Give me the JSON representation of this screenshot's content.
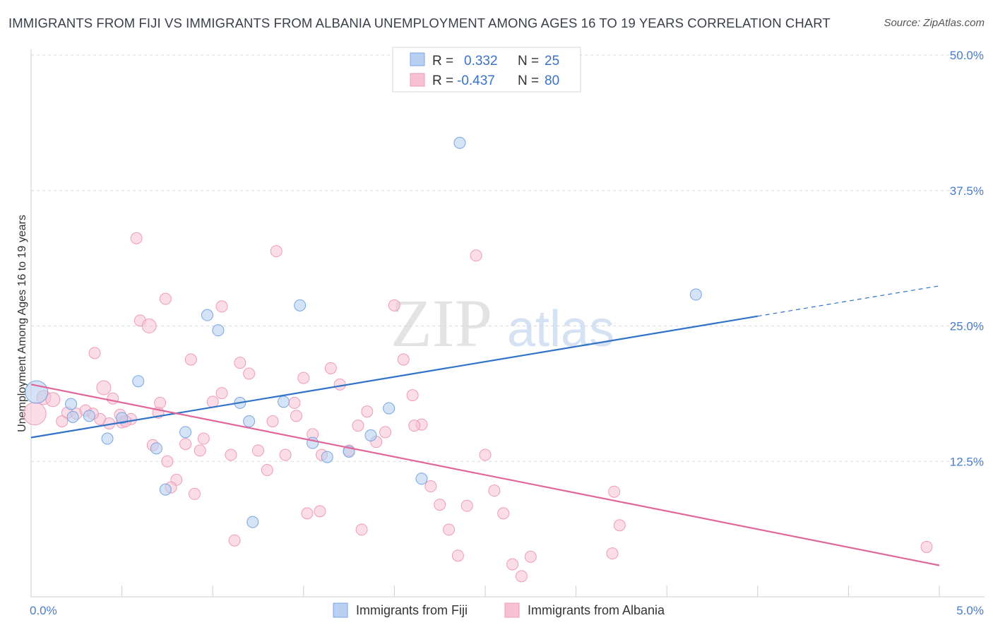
{
  "title": "IMMIGRANTS FROM FIJI VS IMMIGRANTS FROM ALBANIA UNEMPLOYMENT AMONG AGES 16 TO 19 YEARS CORRELATION CHART",
  "source": "Source: ZipAtlas.com",
  "watermark": {
    "zip": "ZIP",
    "atlas": "atlas"
  },
  "legend": {
    "fiji": {
      "r_label": "R =",
      "r_value": "0.332",
      "n_label": "N =",
      "n_value": "25"
    },
    "albania": {
      "r_label": "R =",
      "r_value": "-0.437",
      "n_label": "N =",
      "n_value": "80"
    }
  },
  "colors": {
    "fiji_fill": "#b9d0f2",
    "fiji_stroke": "#7aa6e0",
    "fiji_line": "#2f72c8",
    "albania_fill": "#f7c1d3",
    "albania_stroke": "#ee9bb8",
    "albania_line": "#e0679a",
    "tick_text": "#4a7cc9",
    "grid": "#d8d8d8"
  },
  "chart_data": {
    "type": "scatter",
    "title": "IMMIGRANTS FROM FIJI VS IMMIGRANTS FROM ALBANIA UNEMPLOYMENT AMONG AGES 16 TO 19 YEARS CORRELATION CHART",
    "xlabel": "",
    "ylabel": "Unemployment Among Ages 16 to 19 years",
    "xlim": [
      0,
      5
    ],
    "ylim": [
      0,
      50
    ],
    "x_tick_labels": [
      {
        "value": 0,
        "label": "0.0%"
      },
      {
        "value": 5,
        "label": "5.0%"
      }
    ],
    "y_tick_labels": [
      {
        "value": 12.5,
        "label": "12.5%"
      },
      {
        "value": 25,
        "label": "25.0%"
      },
      {
        "value": 37.5,
        "label": "37.5%"
      },
      {
        "value": 50,
        "label": "50.0%"
      }
    ],
    "grid": true,
    "legend_position": "top-center",
    "series": [
      {
        "name": "Immigrants from Fiji",
        "r": 0.332,
        "n": 25,
        "trend": {
          "x": [
            0,
            4.0
          ],
          "y": [
            14.7,
            25.9
          ],
          "dashed_to": [
            5.0,
            28.7
          ]
        },
        "points": [
          [
            0.03,
            18.9,
            16
          ],
          [
            0.22,
            17.8,
            8
          ],
          [
            0.32,
            16.7,
            8
          ],
          [
            0.42,
            14.6,
            8
          ],
          [
            0.5,
            16.5,
            8
          ],
          [
            0.59,
            19.9,
            8
          ],
          [
            0.69,
            13.7,
            8
          ],
          [
            0.74,
            9.9,
            8
          ],
          [
            0.85,
            15.2,
            8
          ],
          [
            0.97,
            26.0,
            8
          ],
          [
            1.03,
            24.6,
            8
          ],
          [
            1.15,
            17.9,
            8
          ],
          [
            1.2,
            16.2,
            8
          ],
          [
            1.39,
            18.0,
            8
          ],
          [
            1.48,
            26.9,
            8
          ],
          [
            1.55,
            14.2,
            8
          ],
          [
            1.63,
            12.9,
            8
          ],
          [
            1.75,
            13.4,
            8
          ],
          [
            1.87,
            14.9,
            8
          ],
          [
            1.97,
            17.4,
            8
          ],
          [
            2.15,
            10.9,
            8
          ],
          [
            2.36,
            41.9,
            8
          ],
          [
            1.22,
            6.9,
            8
          ],
          [
            3.66,
            27.9,
            8
          ],
          [
            0.23,
            16.6,
            8
          ]
        ]
      },
      {
        "name": "Immigrants from Albania",
        "r": -0.437,
        "n": 80,
        "trend": {
          "x": [
            0,
            5.0
          ],
          "y": [
            19.6,
            2.9
          ]
        },
        "points": [
          [
            0.02,
            16.9,
            16
          ],
          [
            0.07,
            18.4,
            10
          ],
          [
            0.12,
            18.2,
            10
          ],
          [
            0.17,
            16.2,
            8
          ],
          [
            0.2,
            17.0,
            8
          ],
          [
            0.25,
            16.9,
            8
          ],
          [
            0.3,
            17.2,
            8
          ],
          [
            0.35,
            22.5,
            8
          ],
          [
            0.38,
            16.4,
            8
          ],
          [
            0.4,
            19.3,
            10
          ],
          [
            0.45,
            18.3,
            8
          ],
          [
            0.5,
            16.1,
            8
          ],
          [
            0.55,
            16.4,
            8
          ],
          [
            0.6,
            25.5,
            8
          ],
          [
            0.65,
            25.0,
            10
          ],
          [
            0.7,
            17.0,
            8
          ],
          [
            0.75,
            12.5,
            8
          ],
          [
            0.8,
            10.8,
            8
          ],
          [
            0.85,
            14.1,
            8
          ],
          [
            0.9,
            9.5,
            8
          ],
          [
            0.95,
            14.6,
            8
          ],
          [
            1.0,
            18.0,
            8
          ],
          [
            1.05,
            18.8,
            8
          ],
          [
            1.1,
            13.1,
            8
          ],
          [
            1.15,
            21.6,
            8
          ],
          [
            1.2,
            20.6,
            8
          ],
          [
            1.25,
            13.5,
            8
          ],
          [
            1.3,
            11.7,
            8
          ],
          [
            1.35,
            31.9,
            8
          ],
          [
            1.4,
            13.1,
            8
          ],
          [
            1.45,
            17.9,
            8
          ],
          [
            1.5,
            20.2,
            8
          ],
          [
            1.55,
            15.0,
            8
          ],
          [
            1.6,
            13.1,
            8
          ],
          [
            1.65,
            21.1,
            8
          ],
          [
            1.7,
            19.6,
            8
          ],
          [
            1.75,
            13.5,
            8
          ],
          [
            1.8,
            15.8,
            8
          ],
          [
            1.85,
            17.1,
            8
          ],
          [
            1.9,
            14.3,
            8
          ],
          [
            1.95,
            15.2,
            8
          ],
          [
            2.0,
            26.9,
            8
          ],
          [
            2.05,
            21.9,
            8
          ],
          [
            2.1,
            18.6,
            8
          ],
          [
            2.15,
            15.9,
            8
          ],
          [
            2.2,
            10.2,
            8
          ],
          [
            2.25,
            8.5,
            8
          ],
          [
            2.3,
            6.2,
            8
          ],
          [
            2.35,
            3.8,
            8
          ],
          [
            2.4,
            8.4,
            8
          ],
          [
            2.45,
            31.5,
            8
          ],
          [
            2.5,
            13.1,
            8
          ],
          [
            2.55,
            9.8,
            8
          ],
          [
            2.6,
            7.7,
            8
          ],
          [
            2.65,
            3.0,
            8
          ],
          [
            2.7,
            1.9,
            8
          ],
          [
            2.75,
            3.7,
            8
          ],
          [
            0.58,
            33.1,
            8
          ],
          [
            0.74,
            27.5,
            8
          ],
          [
            1.05,
            26.8,
            8
          ],
          [
            0.49,
            16.8,
            8
          ],
          [
            0.43,
            16.0,
            8
          ],
          [
            0.34,
            16.9,
            8
          ],
          [
            0.71,
            17.9,
            8
          ],
          [
            0.67,
            14.0,
            8
          ],
          [
            0.88,
            21.9,
            8
          ],
          [
            0.93,
            13.5,
            8
          ],
          [
            1.12,
            5.2,
            8
          ],
          [
            1.33,
            16.2,
            8
          ],
          [
            1.46,
            16.7,
            8
          ],
          [
            1.52,
            7.7,
            8
          ],
          [
            1.59,
            7.9,
            8
          ],
          [
            1.82,
            6.2,
            8
          ],
          [
            3.21,
            9.7,
            8
          ],
          [
            3.24,
            6.6,
            8
          ],
          [
            3.2,
            4.0,
            8
          ],
          [
            2.11,
            15.8,
            8
          ],
          [
            0.52,
            16.2,
            8
          ],
          [
            0.77,
            10.1,
            8
          ],
          [
            4.93,
            4.6,
            8
          ]
        ]
      }
    ]
  },
  "bottom_legend": {
    "fiji_label": "Immigrants from Fiji",
    "albania_label": "Immigrants from Albania"
  }
}
